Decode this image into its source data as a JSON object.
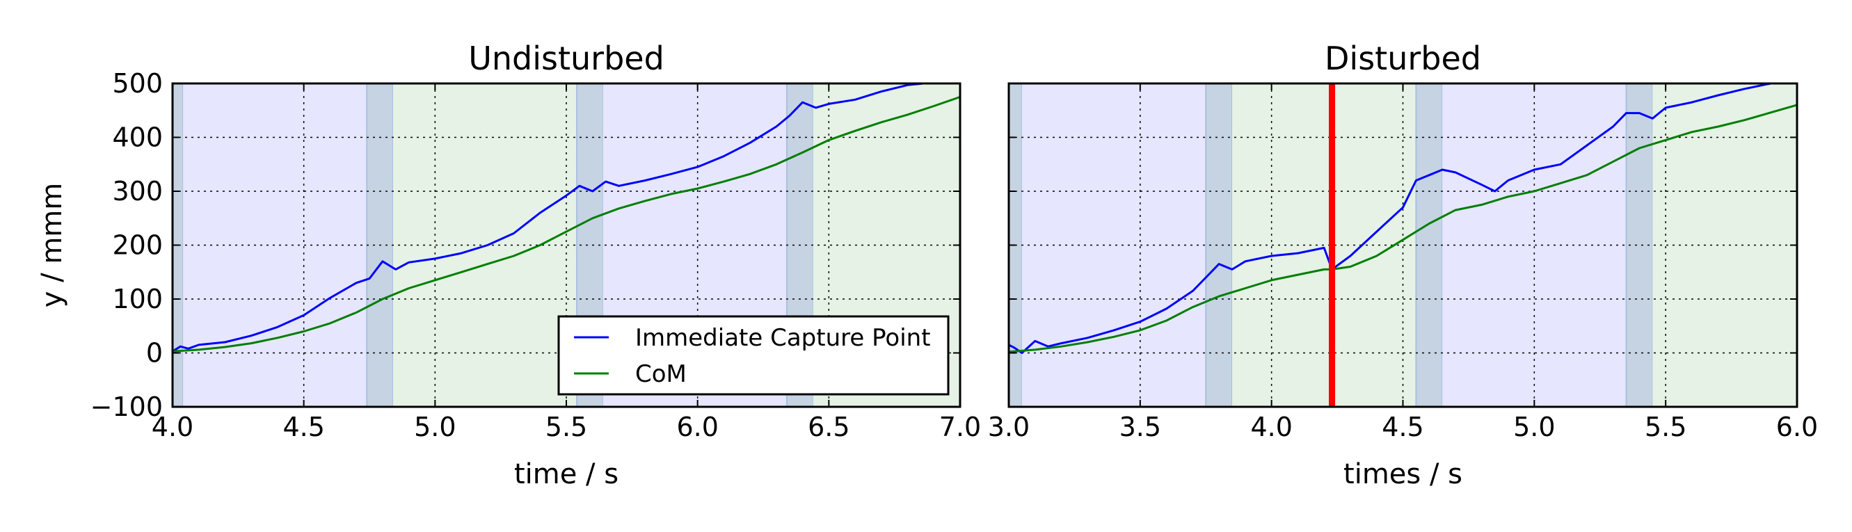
{
  "chart_data": [
    {
      "type": "line",
      "title": "Undisturbed",
      "xlabel": "time / s",
      "ylabel": "y / mmm",
      "xlim": [
        4.0,
        7.0
      ],
      "ylim": [
        -100,
        500
      ],
      "xticks": [
        "4.0",
        "4.5",
        "5.0",
        "5.5",
        "6.0",
        "6.5",
        "7.0"
      ],
      "yticks": [
        "−100",
        "0",
        "100",
        "200",
        "300",
        "400",
        "500"
      ],
      "grid": true,
      "background": "#e6e6ff",
      "phases": [
        {
          "x0": 4.0,
          "x1": 4.04,
          "kind": "double-support"
        },
        {
          "x0": 4.04,
          "x1": 4.74,
          "kind": "left"
        },
        {
          "x0": 4.74,
          "x1": 4.84,
          "kind": "double-support"
        },
        {
          "x0": 4.84,
          "x1": 5.54,
          "kind": "right"
        },
        {
          "x0": 5.54,
          "x1": 5.64,
          "kind": "double-support"
        },
        {
          "x0": 5.64,
          "x1": 6.34,
          "kind": "left"
        },
        {
          "x0": 6.34,
          "x1": 6.44,
          "kind": "double-support"
        },
        {
          "x0": 6.44,
          "x1": 7.0,
          "kind": "right"
        }
      ],
      "series": [
        {
          "name": "Immediate Capture Point",
          "color": "#0000ff",
          "x": [
            4.0,
            4.03,
            4.06,
            4.1,
            4.2,
            4.3,
            4.4,
            4.5,
            4.6,
            4.7,
            4.75,
            4.8,
            4.85,
            4.9,
            5.0,
            5.1,
            5.2,
            5.3,
            5.4,
            5.5,
            5.55,
            5.6,
            5.65,
            5.7,
            5.8,
            5.9,
            6.0,
            6.1,
            6.2,
            6.3,
            6.35,
            6.4,
            6.45,
            6.5,
            6.6,
            6.7,
            6.8,
            6.86
          ],
          "y": [
            3,
            12,
            8,
            15,
            20,
            32,
            48,
            70,
            102,
            130,
            138,
            170,
            155,
            168,
            175,
            185,
            200,
            222,
            260,
            292,
            310,
            300,
            318,
            310,
            320,
            332,
            345,
            365,
            390,
            420,
            440,
            465,
            455,
            462,
            470,
            485,
            497,
            500
          ]
        },
        {
          "name": "CoM",
          "color": "#007f00",
          "x": [
            4.0,
            4.1,
            4.2,
            4.3,
            4.4,
            4.5,
            4.6,
            4.7,
            4.8,
            4.9,
            5.0,
            5.1,
            5.2,
            5.3,
            5.4,
            5.5,
            5.6,
            5.7,
            5.8,
            5.9,
            6.0,
            6.1,
            6.2,
            6.3,
            6.4,
            6.5,
            6.6,
            6.7,
            6.8,
            6.9,
            7.0
          ],
          "y": [
            3,
            6,
            11,
            18,
            28,
            40,
            55,
            75,
            100,
            120,
            135,
            150,
            165,
            180,
            200,
            225,
            250,
            268,
            282,
            295,
            305,
            318,
            332,
            350,
            372,
            395,
            412,
            428,
            442,
            458,
            475
          ]
        }
      ],
      "legend": {
        "placement": "lower-right",
        "entries": [
          "Immediate Capture Point",
          "CoM"
        ]
      }
    },
    {
      "type": "line",
      "title": "Disturbed",
      "xlabel": "times / s",
      "ylabel": "",
      "xlim": [
        3.0,
        6.0
      ],
      "ylim": [
        -100,
        500
      ],
      "xticks": [
        "3.0",
        "3.5",
        "4.0",
        "4.5",
        "5.0",
        "5.5",
        "6.0"
      ],
      "grid": true,
      "background": "#e6e6ff",
      "phases": [
        {
          "x0": 3.0,
          "x1": 3.05,
          "kind": "double-support"
        },
        {
          "x0": 3.05,
          "x1": 3.75,
          "kind": "left"
        },
        {
          "x0": 3.75,
          "x1": 3.85,
          "kind": "double-support"
        },
        {
          "x0": 3.85,
          "x1": 4.55,
          "kind": "right"
        },
        {
          "x0": 4.55,
          "x1": 4.65,
          "kind": "double-support"
        },
        {
          "x0": 4.65,
          "x1": 5.35,
          "kind": "left"
        },
        {
          "x0": 5.35,
          "x1": 5.45,
          "kind": "double-support"
        },
        {
          "x0": 5.45,
          "x1": 6.0,
          "kind": "right"
        }
      ],
      "disturbance": {
        "x": 4.23,
        "color": "#ff0000"
      },
      "series": [
        {
          "name": "Immediate Capture Point",
          "color": "#0000ff",
          "x": [
            3.0,
            3.02,
            3.05,
            3.1,
            3.15,
            3.2,
            3.3,
            3.4,
            3.5,
            3.6,
            3.7,
            3.75,
            3.8,
            3.85,
            3.9,
            4.0,
            4.1,
            4.2,
            4.23,
            4.3,
            4.4,
            4.5,
            4.55,
            4.6,
            4.65,
            4.7,
            4.8,
            4.85,
            4.9,
            5.0,
            5.1,
            5.2,
            5.3,
            5.35,
            5.4,
            5.45,
            5.5,
            5.6,
            5.7,
            5.8,
            5.9,
            5.95
          ],
          "y": [
            15,
            10,
            0,
            22,
            12,
            18,
            28,
            42,
            58,
            82,
            115,
            140,
            165,
            155,
            170,
            180,
            185,
            195,
            155,
            180,
            225,
            270,
            320,
            330,
            340,
            335,
            312,
            300,
            320,
            340,
            350,
            385,
            420,
            445,
            445,
            435,
            455,
            465,
            478,
            490,
            500,
            500
          ]
        },
        {
          "name": "CoM",
          "color": "#007f00",
          "x": [
            3.0,
            3.1,
            3.2,
            3.3,
            3.4,
            3.5,
            3.6,
            3.7,
            3.8,
            3.9,
            4.0,
            4.1,
            4.2,
            4.23,
            4.3,
            4.4,
            4.5,
            4.6,
            4.7,
            4.8,
            4.9,
            5.0,
            5.1,
            5.2,
            5.3,
            5.4,
            5.5,
            5.6,
            5.7,
            5.8,
            5.9,
            6.0
          ],
          "y": [
            2,
            6,
            12,
            20,
            30,
            42,
            60,
            85,
            105,
            120,
            135,
            145,
            155,
            155,
            160,
            180,
            210,
            240,
            265,
            275,
            290,
            300,
            315,
            330,
            355,
            380,
            395,
            410,
            420,
            432,
            446,
            460
          ]
        }
      ]
    }
  ]
}
